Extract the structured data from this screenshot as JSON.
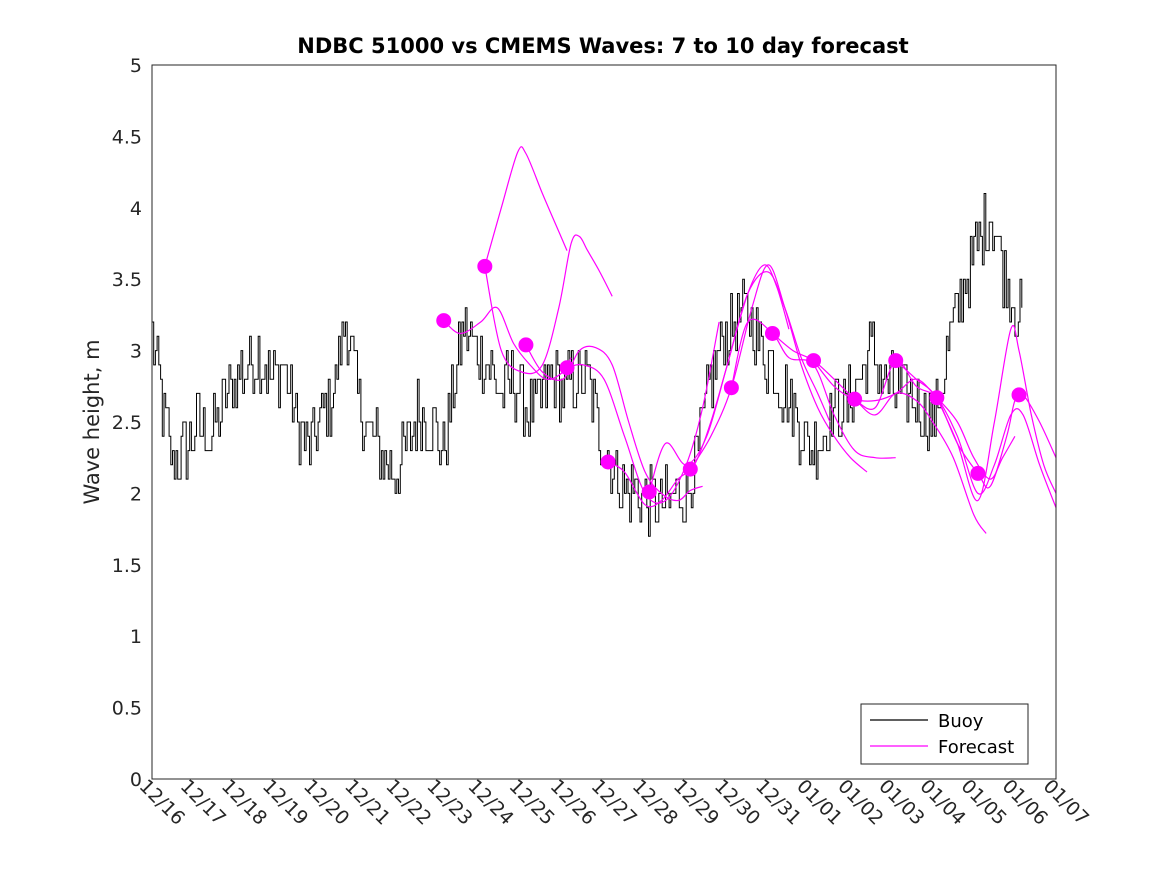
{
  "chart_data": {
    "type": "line",
    "title": "NDBC 51000 vs CMEMS Waves: 7 to 10 day forecast",
    "xlabel": "",
    "ylabel": "Wave height, m",
    "xlim": [
      0,
      22
    ],
    "ylim": [
      0,
      5
    ],
    "x_tick_labels": [
      "12/16",
      "12/17",
      "12/18",
      "12/19",
      "12/20",
      "12/21",
      "12/22",
      "12/23",
      "12/24",
      "12/25",
      "12/26",
      "12/27",
      "12/28",
      "12/29",
      "12/30",
      "12/31",
      "01/01",
      "01/02",
      "01/03",
      "01/04",
      "01/05",
      "01/06",
      "01/07"
    ],
    "y_ticks": [
      0,
      0.5,
      1,
      1.5,
      2,
      2.5,
      3,
      3.5,
      4,
      4.5,
      5
    ],
    "y_tick_labels": [
      "0",
      "0.5",
      "1",
      "1.5",
      "2",
      "2.5",
      "3",
      "3.5",
      "4",
      "4.5",
      "5"
    ],
    "legend": {
      "location": "bottom-right",
      "entries": [
        "Buoy",
        "Forecast"
      ]
    },
    "colors": {
      "buoy": "#000000",
      "forecast": "#ff00ff"
    },
    "buoy_anchors": [
      [
        0,
        3.1
      ],
      [
        0.3,
        2.5
      ],
      [
        0.5,
        2.2
      ],
      [
        0.8,
        2.3
      ],
      [
        1.1,
        2.5
      ],
      [
        1.4,
        2.4
      ],
      [
        1.7,
        2.6
      ],
      [
        2.0,
        2.8
      ],
      [
        2.3,
        2.9
      ],
      [
        2.6,
        3.0
      ],
      [
        2.9,
        2.8
      ],
      [
        3.2,
        2.9
      ],
      [
        3.5,
        2.5
      ],
      [
        3.8,
        2.3
      ],
      [
        4.1,
        2.5
      ],
      [
        4.4,
        2.7
      ],
      [
        4.7,
        3.2
      ],
      [
        5.0,
        2.7
      ],
      [
        5.3,
        2.4
      ],
      [
        5.6,
        2.3
      ],
      [
        5.9,
        2.1
      ],
      [
        6.2,
        2.3
      ],
      [
        6.5,
        2.6
      ],
      [
        6.8,
        2.5
      ],
      [
        7.1,
        2.3
      ],
      [
        7.3,
        2.7
      ],
      [
        7.6,
        3.2
      ],
      [
        7.9,
        3.0
      ],
      [
        8.2,
        2.9
      ],
      [
        8.5,
        2.7
      ],
      [
        8.8,
        2.8
      ],
      [
        9.1,
        2.6
      ],
      [
        9.4,
        2.6
      ],
      [
        9.7,
        2.8
      ],
      [
        10.0,
        2.7
      ],
      [
        10.3,
        2.8
      ],
      [
        10.6,
        2.8
      ],
      [
        10.9,
        2.4
      ],
      [
        11.2,
        2.2
      ],
      [
        11.5,
        2.0
      ],
      [
        11.8,
        2.0
      ],
      [
        12.1,
        1.95
      ],
      [
        12.4,
        1.9
      ],
      [
        12.7,
        1.95
      ],
      [
        13.0,
        2.0
      ],
      [
        13.3,
        2.3
      ],
      [
        13.6,
        2.8
      ],
      [
        13.9,
        3.1
      ],
      [
        14.2,
        3.2
      ],
      [
        14.5,
        3.3
      ],
      [
        14.8,
        3.0
      ],
      [
        15.1,
        2.9
      ],
      [
        15.4,
        2.7
      ],
      [
        15.7,
        2.5
      ],
      [
        16.0,
        2.3
      ],
      [
        16.3,
        2.4
      ],
      [
        16.6,
        2.6
      ],
      [
        16.9,
        2.6
      ],
      [
        17.2,
        2.8
      ],
      [
        17.5,
        3.0
      ],
      [
        17.8,
        2.8
      ],
      [
        18.1,
        2.7
      ],
      [
        18.4,
        2.7
      ],
      [
        18.7,
        2.6
      ],
      [
        19.0,
        2.5
      ],
      [
        19.3,
        2.9
      ],
      [
        19.6,
        3.3
      ],
      [
        19.9,
        3.6
      ],
      [
        20.2,
        3.8
      ],
      [
        20.4,
        4.0
      ],
      [
        20.7,
        3.6
      ],
      [
        21.0,
        3.3
      ],
      [
        21.2,
        3.2
      ]
    ],
    "forecast_points": [
      [
        7.1,
        3.21
      ],
      [
        8.1,
        3.59
      ],
      [
        9.1,
        3.04
      ],
      [
        10.1,
        2.88
      ],
      [
        11.1,
        2.22
      ],
      [
        12.1,
        2.01
      ],
      [
        13.1,
        2.17
      ],
      [
        14.1,
        2.74
      ],
      [
        15.1,
        3.12
      ],
      [
        16.1,
        2.93
      ],
      [
        17.1,
        2.66
      ],
      [
        18.1,
        2.93
      ],
      [
        19.1,
        2.67
      ],
      [
        20.1,
        2.14
      ],
      [
        21.1,
        2.69
      ]
    ],
    "forecast_series": [
      {
        "name": "forecast-1",
        "x": [
          7.1,
          7.5,
          8.0,
          8.4,
          8.8,
          9.2,
          9.6,
          10.0,
          10.2
        ],
        "values": [
          3.21,
          3.12,
          3.2,
          3.3,
          3.05,
          2.9,
          2.8,
          2.85,
          2.95
        ]
      },
      {
        "name": "forecast-2",
        "x": [
          8.1,
          8.5,
          8.9,
          9.1,
          9.5,
          9.8,
          10.1
        ],
        "values": [
          3.59,
          4.0,
          4.39,
          4.38,
          4.1,
          3.9,
          3.7
        ]
      },
      {
        "name": "forecast-3",
        "x": [
          8.1,
          8.5,
          9.0,
          9.5,
          9.9,
          10.2,
          10.4,
          10.6,
          10.9,
          11.2
        ],
        "values": [
          3.59,
          3.0,
          2.85,
          2.9,
          3.3,
          3.75,
          3.8,
          3.7,
          3.55,
          3.38
        ]
      },
      {
        "name": "forecast-4",
        "x": [
          9.1,
          9.5,
          10.0,
          10.4,
          10.8,
          11.2,
          11.6,
          12.0,
          12.4,
          12.8,
          13.1,
          13.4
        ],
        "values": [
          3.04,
          2.85,
          2.8,
          3.0,
          3.02,
          2.9,
          2.5,
          2.15,
          2.0,
          1.95,
          2.02,
          2.05
        ]
      },
      {
        "name": "forecast-5",
        "x": [
          10.1,
          10.5,
          11.0,
          11.5,
          12.0,
          12.5,
          13.0,
          13.4,
          13.8
        ],
        "values": [
          2.88,
          2.9,
          2.8,
          2.4,
          2.0,
          1.95,
          2.2,
          2.6,
          3.2
        ]
      },
      {
        "name": "forecast-6",
        "x": [
          11.1,
          11.5,
          12.0,
          12.4,
          12.8,
          13.2,
          13.6,
          14.0,
          14.5,
          14.9,
          15.2,
          15.5
        ],
        "values": [
          2.22,
          2.15,
          1.92,
          1.95,
          2.1,
          2.2,
          2.5,
          2.9,
          3.4,
          3.6,
          3.45,
          3.15
        ]
      },
      {
        "name": "forecast-7",
        "x": [
          12.1,
          12.5,
          13.0,
          13.5,
          14.0,
          14.5,
          15.0,
          15.4,
          15.8,
          16.2,
          16.5
        ],
        "values": [
          2.01,
          2.35,
          2.2,
          2.4,
          2.9,
          3.4,
          3.55,
          3.3,
          2.95,
          2.7,
          2.5
        ]
      },
      {
        "name": "forecast-8",
        "x": [
          13.1,
          13.6,
          14.1,
          14.6,
          15.0,
          15.4,
          15.8,
          16.2,
          16.6,
          17.0,
          17.4
        ],
        "values": [
          2.17,
          2.4,
          2.74,
          3.3,
          3.6,
          3.3,
          2.9,
          2.6,
          2.4,
          2.25,
          2.15
        ]
      },
      {
        "name": "forecast-9",
        "x": [
          14.1,
          14.5,
          15.1,
          15.5,
          16.1,
          16.6,
          17.1,
          17.6,
          18.1
        ],
        "values": [
          2.74,
          3.2,
          3.12,
          2.95,
          2.9,
          2.55,
          2.3,
          2.25,
          2.25
        ]
      },
      {
        "name": "forecast-10",
        "x": [
          15.1,
          15.6,
          16.1,
          16.6,
          17.1,
          17.6,
          18.1,
          18.6,
          19.0,
          19.5,
          20.0,
          20.3
        ],
        "values": [
          3.12,
          3.0,
          2.93,
          2.8,
          2.66,
          2.55,
          2.7,
          2.65,
          2.5,
          2.25,
          1.85,
          1.72
        ]
      },
      {
        "name": "forecast-11",
        "x": [
          16.1,
          16.6,
          17.1,
          17.6,
          18.1,
          18.6,
          19.1,
          19.6,
          20.0,
          20.4,
          20.7,
          21.0
        ],
        "values": [
          2.93,
          2.75,
          2.66,
          2.65,
          2.7,
          2.8,
          2.67,
          2.5,
          2.25,
          2.1,
          2.25,
          2.4
        ]
      },
      {
        "name": "forecast-12",
        "x": [
          17.1,
          17.6,
          18.1,
          18.6,
          19.1,
          19.6,
          20.1,
          20.5,
          20.9,
          21.2,
          21.6,
          22.0
        ],
        "values": [
          2.66,
          2.6,
          2.93,
          2.75,
          2.67,
          2.4,
          2.0,
          2.2,
          2.55,
          2.55,
          2.2,
          1.9
        ]
      },
      {
        "name": "forecast-13",
        "x": [
          18.1,
          18.6,
          19.1,
          19.6,
          20.1,
          20.4,
          20.8,
          21.0,
          21.2,
          21.6,
          22.0
        ],
        "values": [
          2.93,
          2.8,
          2.67,
          2.35,
          2.14,
          2.05,
          2.4,
          2.65,
          2.69,
          2.5,
          2.25
        ]
      },
      {
        "name": "forecast-14",
        "x": [
          19.1,
          19.6,
          20.1,
          20.5,
          20.9,
          21.1,
          21.4,
          21.7,
          22.0
        ],
        "values": [
          2.67,
          2.35,
          1.95,
          2.5,
          3.15,
          3.0,
          2.55,
          2.2,
          2.0
        ]
      }
    ]
  }
}
